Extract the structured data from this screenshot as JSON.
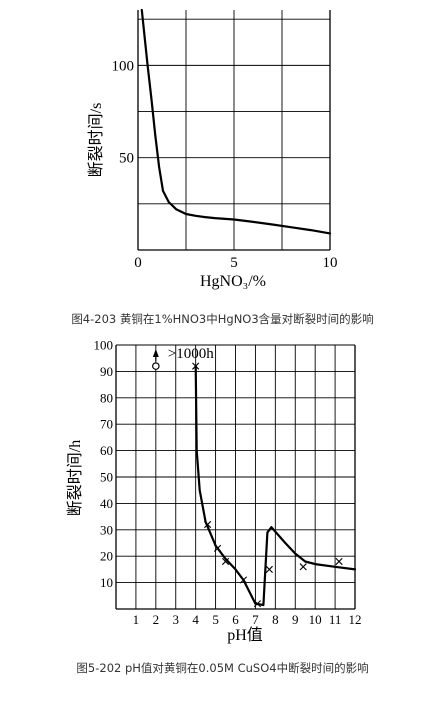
{
  "chart_data": [
    {
      "type": "line",
      "caption": "图4-203 黄铜在1%HNO3中HgNO3含量对断裂时间的影响",
      "xlabel": "HgNO₃/%",
      "ylabel": "断裂时间/s",
      "xlim": [
        0,
        10
      ],
      "ylim": [
        0,
        130
      ],
      "xticks": [
        0,
        5,
        10
      ],
      "yticks": [
        50,
        100
      ],
      "grid": true,
      "series": [
        {
          "x": [
            0.2,
            0.35,
            0.5,
            0.7,
            0.9,
            1.1,
            1.3,
            1.6,
            2.0,
            2.5,
            3.0,
            3.5,
            4.0,
            5.0,
            6.0,
            7.0,
            8.0,
            9.0,
            10.0
          ],
          "y": [
            130,
            115,
            100,
            82,
            62,
            45,
            32,
            26,
            22,
            19.5,
            18.5,
            17.8,
            17.3,
            16.5,
            15.2,
            13.8,
            12.3,
            10.8,
            9.0
          ]
        }
      ]
    },
    {
      "type": "line",
      "caption": "图5-202 pH值对黄铜在0.05M CuSO4中断裂时间的影响",
      "xlabel": "pH值",
      "ylabel": "断裂时间/h",
      "xlim": [
        0,
        12
      ],
      "ylim": [
        0,
        100
      ],
      "xticks": [
        1,
        2,
        3,
        4,
        5,
        6,
        7,
        8,
        9,
        10,
        11,
        12
      ],
      "yticks": [
        10,
        20,
        30,
        40,
        50,
        60,
        70,
        80,
        90,
        100
      ],
      "grid": true,
      "annotations": [
        {
          "text": ">1000h",
          "x": 2.6,
          "y": 97
        }
      ],
      "markers": {
        "circle": [
          {
            "x": 2.0,
            "y": 92
          }
        ],
        "cross": [
          {
            "x": 4.0,
            "y": 92
          },
          {
            "x": 4.6,
            "y": 32
          },
          {
            "x": 5.1,
            "y": 23
          },
          {
            "x": 5.5,
            "y": 18
          },
          {
            "x": 6.4,
            "y": 11
          },
          {
            "x": 7.1,
            "y": 2
          },
          {
            "x": 7.7,
            "y": 15
          },
          {
            "x": 9.4,
            "y": 16
          },
          {
            "x": 11.2,
            "y": 18
          }
        ]
      },
      "series": [
        {
          "x": [
            4.0,
            4.05,
            4.2,
            4.5,
            5.0,
            5.5,
            6.0,
            6.4,
            6.8,
            7.0,
            7.4,
            7.6,
            7.8,
            8.5,
            9.0,
            9.5,
            10.0,
            11.0,
            12.0
          ],
          "y": [
            92,
            60,
            45,
            33,
            24,
            19,
            15,
            11,
            5,
            2,
            1.5,
            29,
            31,
            25,
            21,
            18,
            17,
            16,
            15
          ]
        }
      ]
    }
  ]
}
